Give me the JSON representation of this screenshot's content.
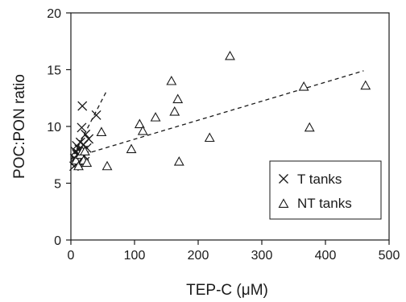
{
  "chart_data": {
    "type": "scatter",
    "xlabel": "TEP-C (μM)",
    "ylabel": "POC:PON ratio",
    "xlim": [
      0,
      500
    ],
    "ylim": [
      0,
      20
    ],
    "xticks": [
      "0",
      "100",
      "200",
      "300",
      "400",
      "500"
    ],
    "yticks": [
      "0",
      "5",
      "10",
      "15",
      "20"
    ],
    "grid": false,
    "legend_position": "lower-right",
    "series": [
      {
        "name": "T tanks",
        "marker": "cross",
        "points": [
          [
            5,
            6.5
          ],
          [
            6,
            7.2
          ],
          [
            7,
            7.8
          ],
          [
            8,
            7.0
          ],
          [
            9,
            8.3
          ],
          [
            10,
            7.5
          ],
          [
            11,
            6.8
          ],
          [
            12,
            7.6
          ],
          [
            13,
            8.0
          ],
          [
            14,
            7.3
          ],
          [
            15,
            8.6
          ],
          [
            16,
            7.7
          ],
          [
            17,
            9.9
          ],
          [
            18,
            11.8
          ],
          [
            19,
            7.9
          ],
          [
            20,
            8.4
          ],
          [
            21,
            7.4
          ],
          [
            22,
            6.9
          ],
          [
            23,
            9.3
          ],
          [
            25,
            8.1
          ],
          [
            28,
            8.9
          ],
          [
            40,
            11.0
          ]
        ],
        "trendline": {
          "style": "dashed",
          "x": [
            0,
            55
          ],
          "y": [
            7.0,
            13.0
          ]
        }
      },
      {
        "name": "NT tanks",
        "marker": "triangle",
        "points": [
          [
            8,
            7.0
          ],
          [
            12,
            6.5
          ],
          [
            15,
            7.5
          ],
          [
            18,
            7.8
          ],
          [
            20,
            7.0
          ],
          [
            22,
            7.8
          ],
          [
            25,
            6.8
          ],
          [
            48,
            9.5
          ],
          [
            57,
            6.5
          ],
          [
            95,
            8.0
          ],
          [
            108,
            10.2
          ],
          [
            113,
            9.6
          ],
          [
            133,
            10.8
          ],
          [
            158,
            14.0
          ],
          [
            163,
            11.3
          ],
          [
            168,
            12.4
          ],
          [
            170,
            6.9
          ],
          [
            218,
            9.0
          ],
          [
            250,
            16.2
          ],
          [
            366,
            13.5
          ],
          [
            375,
            9.9
          ],
          [
            463,
            13.6
          ]
        ],
        "trendline": {
          "style": "dashed",
          "x": [
            0,
            460
          ],
          "y": [
            7.2,
            14.9
          ]
        }
      }
    ]
  }
}
